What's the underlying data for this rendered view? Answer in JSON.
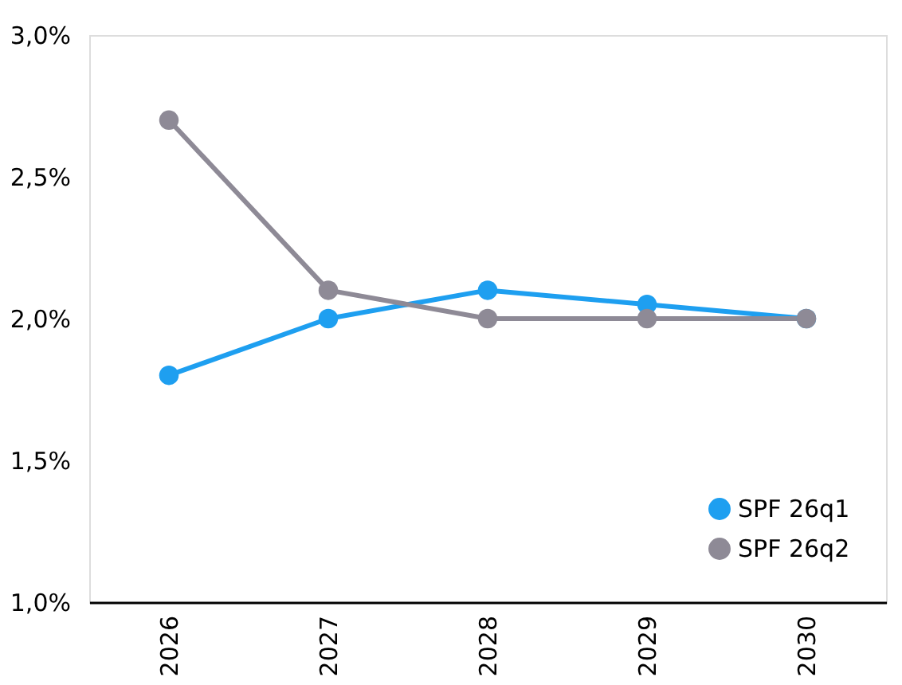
{
  "chart_data": {
    "type": "line",
    "categories": [
      "2026",
      "2027",
      "2028",
      "2029",
      "2030"
    ],
    "series": [
      {
        "name": "SPF 26q1",
        "color": "#1e9ff0",
        "values": [
          1.8,
          2.0,
          2.1,
          2.05,
          2.0
        ]
      },
      {
        "name": "SPF 26q2",
        "color": "#8e8a96",
        "values": [
          2.7,
          2.1,
          2.0,
          2.0,
          2.0
        ]
      }
    ],
    "ylim": [
      1.0,
      3.0
    ],
    "yticks": [
      {
        "value": 1.0,
        "label": "1,0%"
      },
      {
        "value": 1.5,
        "label": "1,5%"
      },
      {
        "value": 2.0,
        "label": "2,0%"
      },
      {
        "value": 2.5,
        "label": "2,5%"
      },
      {
        "value": 3.0,
        "label": "3,0%"
      }
    ],
    "grid": false,
    "legend": "bottom right",
    "marker": "circle",
    "line_style": "solid"
  }
}
